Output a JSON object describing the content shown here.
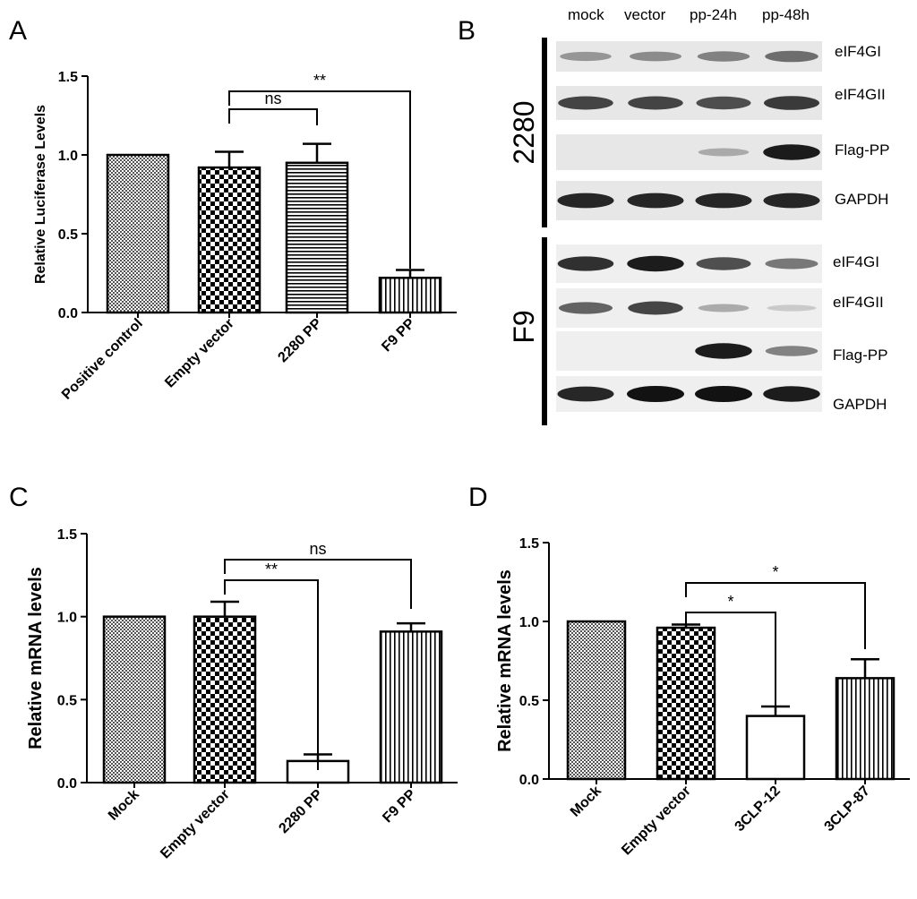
{
  "panels": {
    "A": "A",
    "B": "B",
    "C": "C",
    "D": "D"
  },
  "chart_data": [
    {
      "panel": "A",
      "type": "bar",
      "categories": [
        "Positive control",
        "Empty vector",
        "2280 PP",
        "F9 PP"
      ],
      "values": [
        1.0,
        0.92,
        0.95,
        0.22
      ],
      "errors": [
        0,
        0.1,
        0.12,
        0.05
      ],
      "patterns": [
        "fine-check",
        "check",
        "hlines",
        "vlines"
      ],
      "ylabel": "Relative Luciferase Levels",
      "ylim": [
        0,
        1.5
      ],
      "yticks": [
        "0.0",
        "0.5",
        "1.0",
        "1.5"
      ],
      "significance": [
        {
          "from": 1,
          "to": 2,
          "label": "ns"
        },
        {
          "from": 1,
          "to": 3,
          "label": "**"
        }
      ]
    },
    {
      "panel": "C",
      "type": "bar",
      "categories": [
        "Mock",
        "Empty vector",
        "2280 PP",
        "F9 PP"
      ],
      "values": [
        1.0,
        1.0,
        0.13,
        0.91
      ],
      "errors": [
        0,
        0.09,
        0.04,
        0.05
      ],
      "patterns": [
        "fine-check",
        "check",
        "none",
        "vlines"
      ],
      "ylabel": "Relative mRNA levels",
      "ylim": [
        0,
        1.5
      ],
      "yticks": [
        "0.0",
        "0.5",
        "1.0",
        "1.5"
      ],
      "significance": [
        {
          "from": 1,
          "to": 2,
          "label": "**"
        },
        {
          "from": 1,
          "to": 3,
          "label": "ns"
        }
      ]
    },
    {
      "panel": "D",
      "type": "bar",
      "categories": [
        "Mock",
        "Empty vector",
        "3CLP-12",
        "3CLP-87"
      ],
      "values": [
        1.0,
        0.96,
        0.4,
        0.64
      ],
      "errors": [
        0,
        0.02,
        0.06,
        0.12
      ],
      "patterns": [
        "fine-check",
        "check",
        "none",
        "vlines"
      ],
      "ylabel": "Relative mRNA levels",
      "ylim": [
        0,
        1.5
      ],
      "yticks": [
        "0.0",
        "0.5",
        "1.0",
        "1.5"
      ],
      "significance": [
        {
          "from": 1,
          "to": 2,
          "label": "*"
        },
        {
          "from": 1,
          "to": 3,
          "label": "*"
        }
      ]
    }
  ],
  "blot": {
    "columns": [
      "mock",
      "vector",
      "pp-24h",
      "pp-48h"
    ],
    "groups": [
      {
        "cell_line": "2280",
        "rows": [
          {
            "label": "eIF4GI",
            "intensity": [
              0.35,
              0.4,
              0.45,
              0.55
            ]
          },
          {
            "label": "eIF4GII",
            "intensity": [
              0.75,
              0.75,
              0.7,
              0.8
            ]
          },
          {
            "label": "Flag-PP",
            "intensity": [
              0,
              0,
              0.25,
              0.95
            ]
          },
          {
            "label": "GAPDH",
            "intensity": [
              0.9,
              0.9,
              0.9,
              0.9
            ]
          }
        ]
      },
      {
        "cell_line": "F9",
        "rows": [
          {
            "label": "eIF4GI",
            "intensity": [
              0.85,
              0.95,
              0.7,
              0.5
            ]
          },
          {
            "label": "eIF4GII",
            "intensity": [
              0.6,
              0.75,
              0.25,
              0.1
            ]
          },
          {
            "label": "Flag-PP",
            "intensity": [
              0,
              0,
              0.95,
              0.45
            ]
          },
          {
            "label": "GAPDH",
            "intensity": [
              0.9,
              1.0,
              1.0,
              0.95
            ]
          }
        ]
      }
    ]
  }
}
